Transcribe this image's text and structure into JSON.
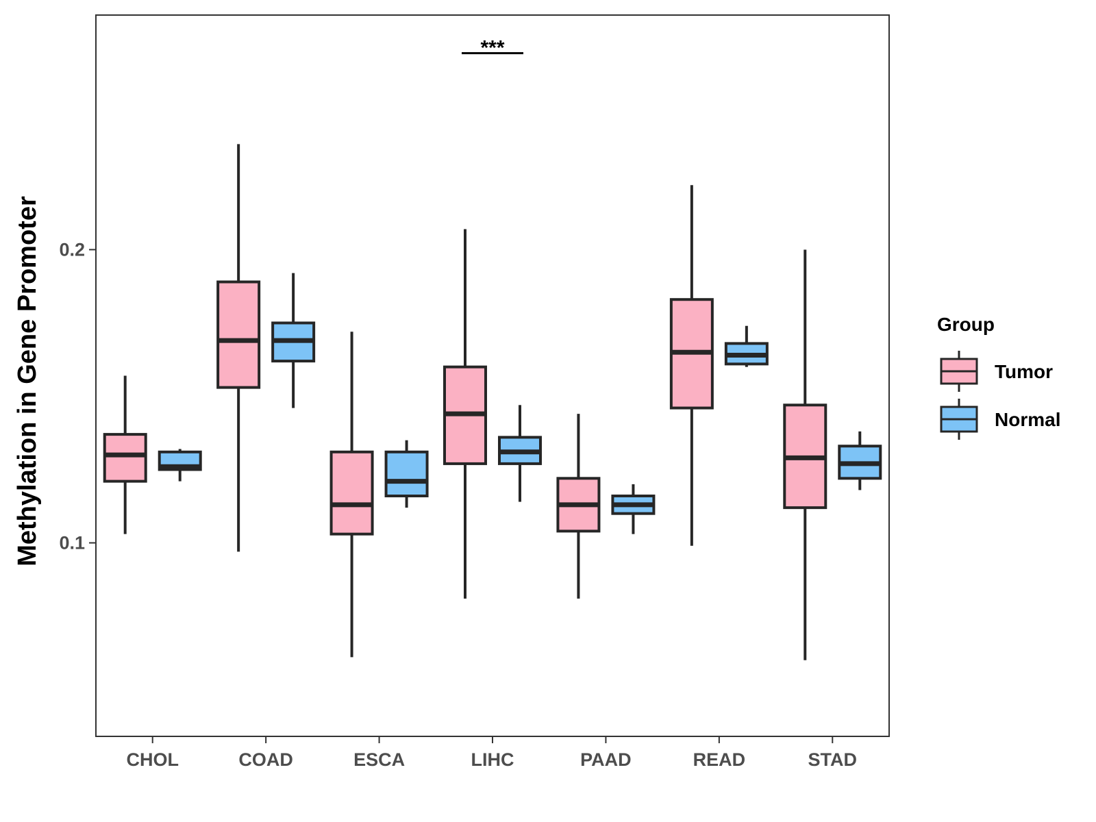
{
  "chart_data": {
    "type": "boxplot",
    "title": "",
    "xlabel": "",
    "ylabel": "Methylation in Gene Promoter",
    "ylim": [
      0.034,
      0.28
    ],
    "yticks": [
      0.1,
      0.2
    ],
    "ytick_labels": [
      "0.1",
      "0.2"
    ],
    "categories": [
      "CHOL",
      "COAD",
      "ESCA",
      "LIHC",
      "PAAD",
      "READ",
      "STAD"
    ],
    "legend": {
      "title": "Group",
      "position": "right"
    },
    "series": [
      {
        "name": "Tumor",
        "color": "#FBB1C3",
        "boxes": [
          {
            "whisker_low": 0.103,
            "q1": 0.121,
            "median": 0.13,
            "q3": 0.137,
            "whisker_high": 0.157
          },
          {
            "whisker_low": 0.097,
            "q1": 0.153,
            "median": 0.169,
            "q3": 0.189,
            "whisker_high": 0.236
          },
          {
            "whisker_low": 0.061,
            "q1": 0.103,
            "median": 0.113,
            "q3": 0.131,
            "whisker_high": 0.172
          },
          {
            "whisker_low": 0.081,
            "q1": 0.127,
            "median": 0.144,
            "q3": 0.16,
            "whisker_high": 0.207
          },
          {
            "whisker_low": 0.081,
            "q1": 0.104,
            "median": 0.113,
            "q3": 0.122,
            "whisker_high": 0.144
          },
          {
            "whisker_low": 0.099,
            "q1": 0.146,
            "median": 0.165,
            "q3": 0.183,
            "whisker_high": 0.222
          },
          {
            "whisker_low": 0.06,
            "q1": 0.112,
            "median": 0.129,
            "q3": 0.147,
            "whisker_high": 0.2
          }
        ]
      },
      {
        "name": "Normal",
        "color": "#7DC3F6",
        "boxes": [
          {
            "whisker_low": 0.121,
            "q1": 0.125,
            "median": 0.126,
            "q3": 0.131,
            "whisker_high": 0.132
          },
          {
            "whisker_low": 0.146,
            "q1": 0.162,
            "median": 0.169,
            "q3": 0.175,
            "whisker_high": 0.192
          },
          {
            "whisker_low": 0.112,
            "q1": 0.116,
            "median": 0.121,
            "q3": 0.131,
            "whisker_high": 0.135
          },
          {
            "whisker_low": 0.114,
            "q1": 0.127,
            "median": 0.131,
            "q3": 0.136,
            "whisker_high": 0.147
          },
          {
            "whisker_low": 0.103,
            "q1": 0.11,
            "median": 0.113,
            "q3": 0.116,
            "whisker_high": 0.12
          },
          {
            "whisker_low": 0.16,
            "q1": 0.161,
            "median": 0.164,
            "q3": 0.168,
            "whisker_high": 0.174
          },
          {
            "whisker_low": 0.118,
            "q1": 0.122,
            "median": 0.127,
            "q3": 0.133,
            "whisker_high": 0.138
          }
        ]
      }
    ],
    "annotations": [
      {
        "text": "***",
        "category": "LIHC",
        "y": 0.267
      }
    ]
  }
}
